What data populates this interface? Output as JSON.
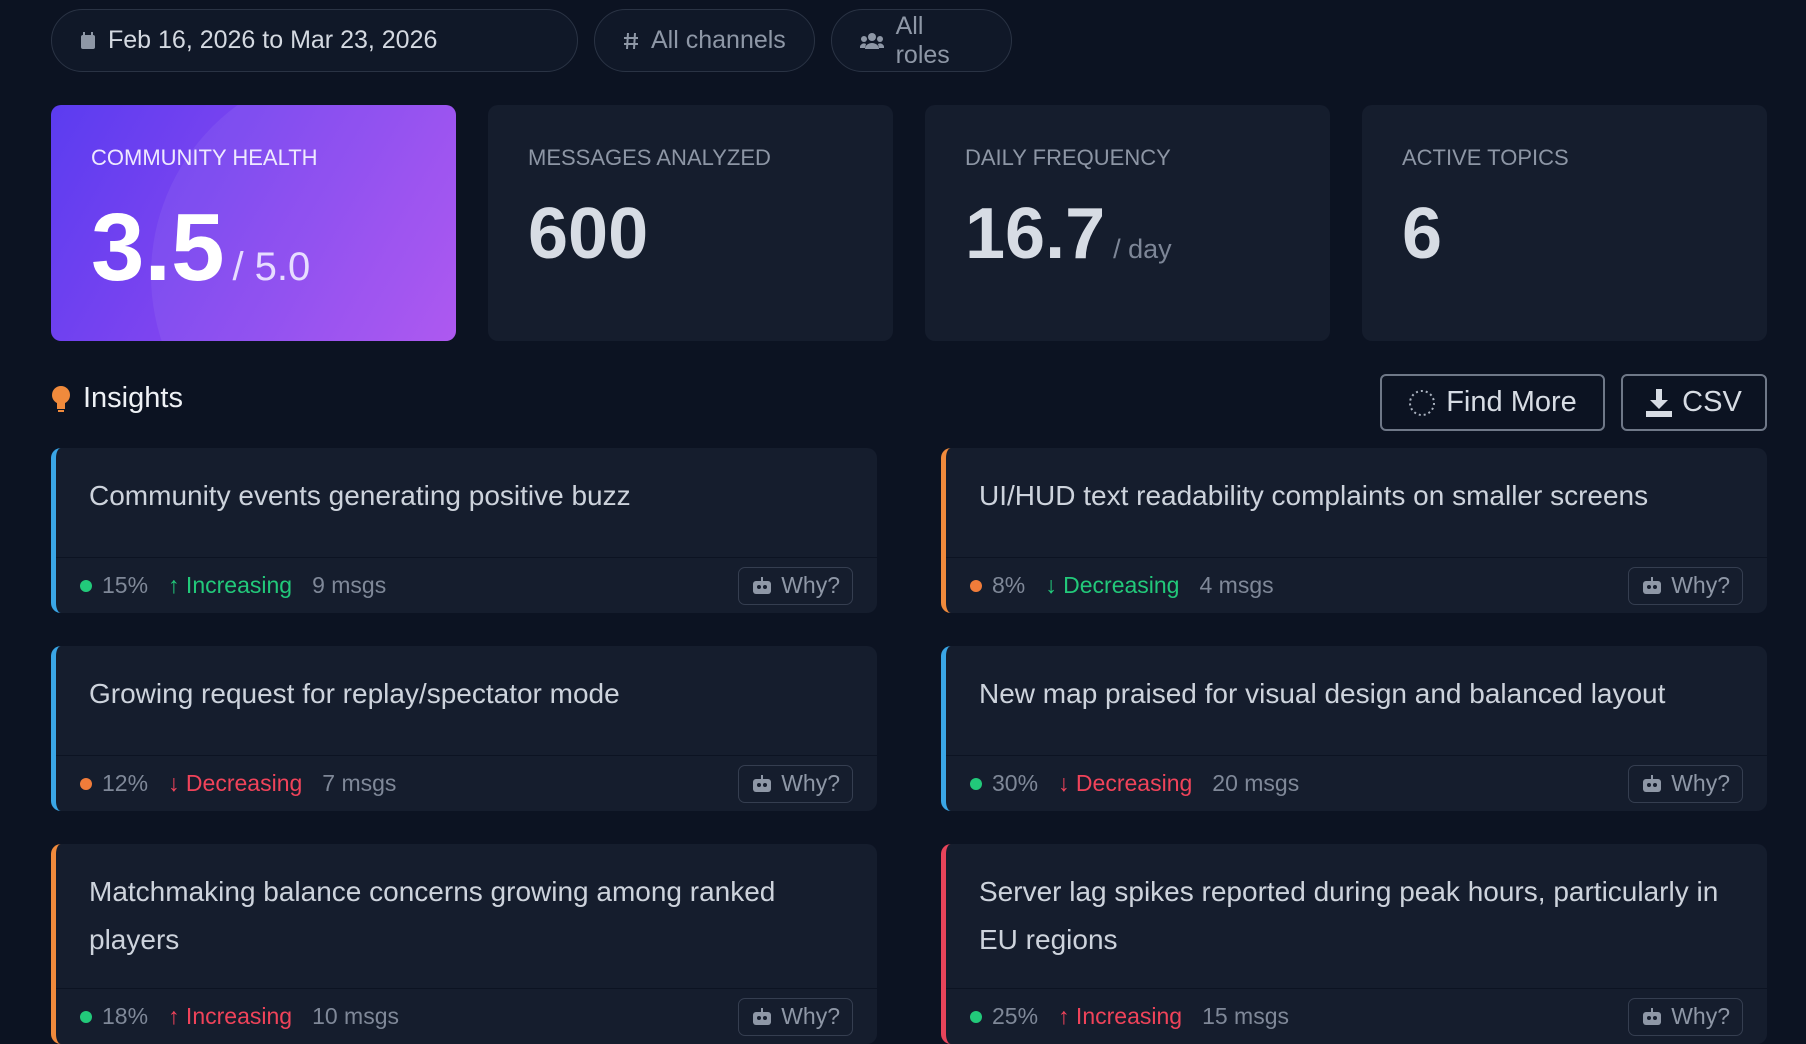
{
  "filters": {
    "date": "Feb 16, 2026 to Mar 23, 2026",
    "channels": "All channels",
    "roles": "All roles"
  },
  "stats": [
    {
      "label": "COMMUNITY HEALTH",
      "value": "3.5",
      "unit": "/ 5.0"
    },
    {
      "label": "MESSAGES ANALYZED",
      "value": "600"
    },
    {
      "label": "DAILY FREQUENCY",
      "value": "16.7",
      "unit": "/ day"
    },
    {
      "label": "ACTIVE TOPICS",
      "value": "6"
    }
  ],
  "insights": {
    "title": "Insights",
    "find_more": "Find More",
    "csv": "CSV",
    "items": [
      {
        "text": "Community events generating positive buzz",
        "percent": "15%",
        "trend": "↑ Increasing",
        "msgs": "9 msgs",
        "why": "Why?",
        "accent": "#3aa6e6",
        "dot": "#22c97a",
        "trend_color": "#22c97a"
      },
      {
        "text": "UI/HUD text readability complaints on smaller screens",
        "percent": "8%",
        "trend": "↓ Decreasing",
        "msgs": "4 msgs",
        "why": "Why?",
        "accent": "#f08a3c",
        "dot": "#f07c3a",
        "trend_color": "#22c97a"
      },
      {
        "text": "Growing request for replay/spectator mode",
        "percent": "12%",
        "trend": "↓ Decreasing",
        "msgs": "7 msgs",
        "why": "Why?",
        "accent": "#3aa6e6",
        "dot": "#f07c3a",
        "trend_color": "#f0435a"
      },
      {
        "text": "New map praised for visual design and balanced layout",
        "percent": "30%",
        "trend": "↓ Decreasing",
        "msgs": "20 msgs",
        "why": "Why?",
        "accent": "#3aa6e6",
        "dot": "#22c97a",
        "trend_color": "#f0435a"
      },
      {
        "text": "Matchmaking balance concerns growing among ranked players",
        "percent": "18%",
        "trend": "↑ Increasing",
        "msgs": "10 msgs",
        "why": "Why?",
        "accent": "#f08a3c",
        "dot": "#22c97a",
        "trend_color": "#f0435a"
      },
      {
        "text": "Server lag spikes reported during peak hours, particularly in EU regions",
        "percent": "25%",
        "trend": "↑ Increasing",
        "msgs": "15 msgs",
        "why": "Why?",
        "accent": "#e8445a",
        "dot": "#22c97a",
        "trend_color": "#f0435a"
      }
    ]
  }
}
